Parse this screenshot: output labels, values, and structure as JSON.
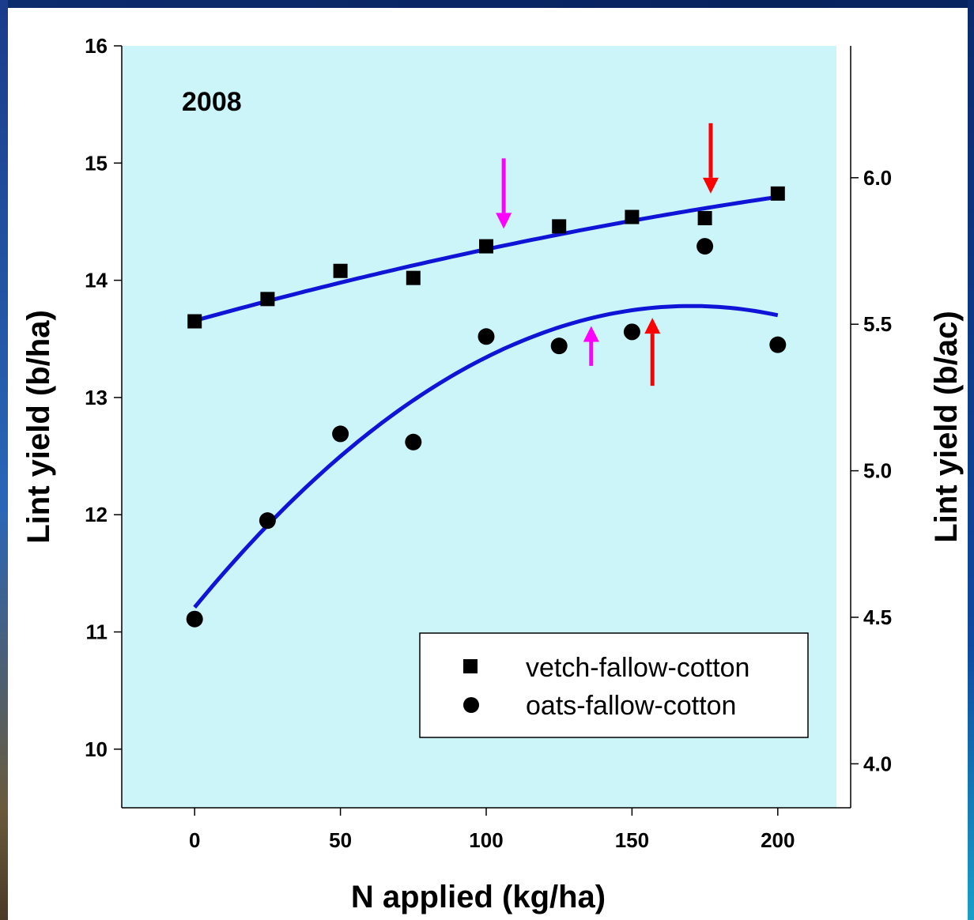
{
  "chart_data": {
    "type": "scatter",
    "annotation": "2008",
    "xlabel": "N applied (kg/ha)",
    "ylabel": "Lint yield (b/ha)",
    "ylabel_right": "Lint yield (b/ac)",
    "xlim": [
      -25,
      225
    ],
    "ylim": [
      9.5,
      16
    ],
    "ylim_right": [
      3.85,
      6.45
    ],
    "x_ticks": [
      0,
      50,
      100,
      150,
      200
    ],
    "y_ticks": [
      10,
      11,
      12,
      13,
      14,
      15,
      16
    ],
    "y_ticks_right": [
      "4.0",
      "4.5",
      "5.0",
      "5.5",
      "6.0"
    ],
    "plot_background": "#ccf5fa",
    "curve_color": "#0f14d6",
    "series": [
      {
        "name": "vetch-fallow-cotton",
        "marker": "square",
        "x": [
          0,
          25,
          50,
          75,
          100,
          125,
          150,
          175,
          200
        ],
        "y": [
          13.65,
          13.84,
          14.08,
          14.02,
          14.29,
          14.46,
          14.54,
          14.53,
          14.74
        ],
        "fit": {
          "a": 13.655,
          "b": 0.0069,
          "c": -8.1e-06
        }
      },
      {
        "name": "oats-fallow-cotton",
        "marker": "circle",
        "x": [
          0,
          25,
          50,
          75,
          100,
          125,
          150,
          175,
          200
        ],
        "y": [
          11.11,
          11.95,
          12.69,
          12.62,
          13.52,
          13.44,
          13.56,
          14.29,
          13.45
        ],
        "fit": {
          "a": 11.21,
          "b": 0.0302,
          "c": -8.87e-05
        }
      }
    ],
    "arrows": [
      {
        "x": 106,
        "y_tail": 15.04,
        "y_head": 14.44,
        "direction": "down",
        "color": "#ff00ff"
      },
      {
        "x": 177,
        "y_tail": 15.34,
        "y_head": 14.74,
        "direction": "down",
        "color": "#ff0000"
      },
      {
        "x": 136,
        "y_tail": 13.27,
        "y_head": 13.61,
        "direction": "up",
        "color": "#ff00ff"
      },
      {
        "x": 157,
        "y_tail": 13.1,
        "y_head": 13.68,
        "direction": "up",
        "color": "#ff0000"
      }
    ],
    "legend_position": "bottom-right"
  }
}
